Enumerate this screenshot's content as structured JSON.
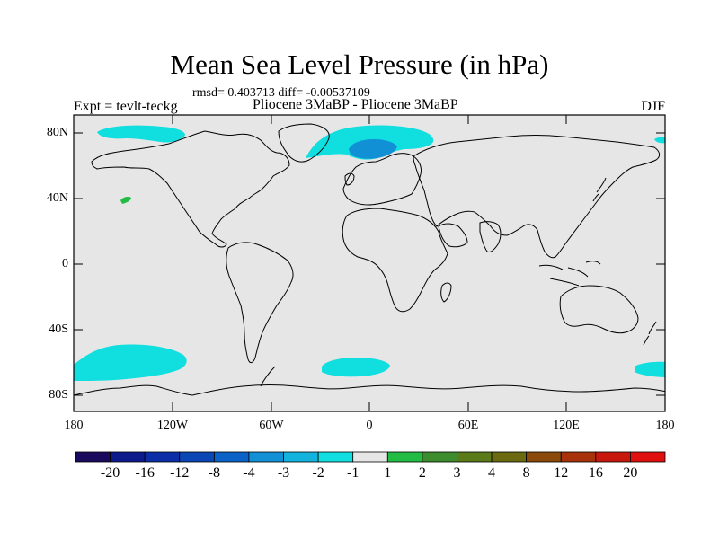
{
  "title": "Mean Sea Level Pressure (in hPa)",
  "stats": "rmsd= 0.403713 diff= -0.00537109",
  "expt_label": "Expt = tevlt-teckg",
  "experiment_name": "Pliocene   3MaBP - Pliocene   3MaBP",
  "season": "DJF",
  "lat_labels": [
    "80N",
    "40N",
    "0",
    "40S",
    "80S"
  ],
  "lon_labels": [
    "180",
    "120W",
    "60W",
    "0",
    "60E",
    "120E",
    "180"
  ],
  "colorbar": {
    "labels": [
      "-20",
      "-16",
      "-12",
      "-8",
      "-4",
      "-3",
      "-2",
      "-1",
      "1",
      "2",
      "3",
      "4",
      "8",
      "12",
      "16",
      "20"
    ],
    "colors": [
      "#1a0a5e",
      "#0c1a8c",
      "#0b2ea6",
      "#0a46b4",
      "#0b62c6",
      "#1190d6",
      "#14b3de",
      "#11dede",
      "#e6e6e6",
      "#22bb44",
      "#3d8c2e",
      "#5b7a1a",
      "#6b6a10",
      "#8a4a0a",
      "#a8320a",
      "#c8180e",
      "#e0100e"
    ]
  },
  "map": {
    "ocean_color": "#e6e6e6",
    "anomaly_colors": {
      "light_cyan": "#11dede",
      "mid_blue": "#1190d6",
      "green": "#22bb44"
    }
  }
}
